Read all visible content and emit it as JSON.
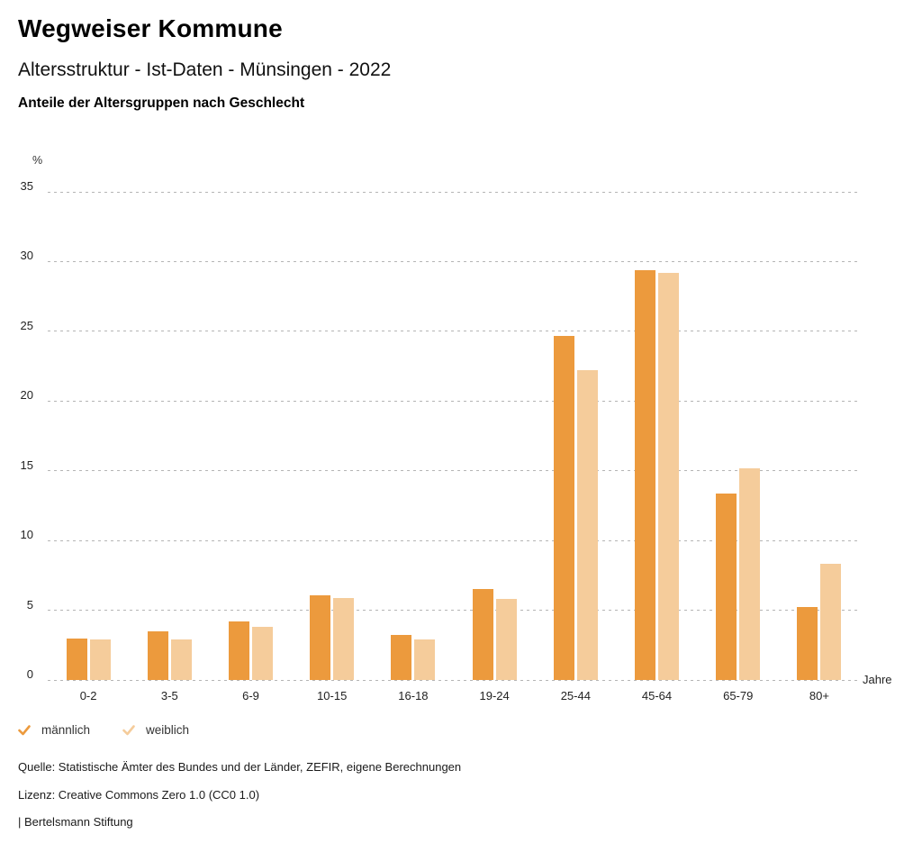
{
  "header": {
    "title": "Wegweiser Kommune",
    "subtitle": "Altersstruktur - Ist-Daten - Münsingen - 2022",
    "caption": "Anteile der Altersgruppen nach Geschlecht"
  },
  "chart_data": {
    "type": "bar",
    "title": "Anteile der Altersgruppen nach Geschlecht",
    "categories": [
      "0-2",
      "3-5",
      "6-9",
      "10-15",
      "16-18",
      "19-24",
      "25-44",
      "45-64",
      "65-79",
      "80+"
    ],
    "series": [
      {
        "name": "männlich",
        "color": "#EC9A3D",
        "values": [
          3.0,
          3.5,
          4.2,
          6.1,
          3.2,
          6.5,
          24.7,
          29.4,
          13.4,
          5.2
        ]
      },
      {
        "name": "weiblich",
        "color": "#F5CC9B",
        "values": [
          2.9,
          2.9,
          3.8,
          5.9,
          2.9,
          5.8,
          22.2,
          29.2,
          15.2,
          8.3
        ]
      }
    ],
    "xlabel": "Jahre",
    "ylabel": "%",
    "ylim": [
      0,
      35
    ],
    "ytick_step": 5,
    "y_ticks": [
      0,
      5,
      10,
      15,
      20,
      25,
      30,
      35
    ],
    "grid": "horizontal-dashed",
    "legend_position": "bottom-left"
  },
  "axes": {
    "y_unit": "%",
    "x_unit": "Jahre"
  },
  "legend": {
    "items": [
      {
        "label": "männlich",
        "icon": "check-icon",
        "color": "#EC9A3D"
      },
      {
        "label": "weiblich",
        "icon": "check-icon",
        "color": "#F5CC9B"
      }
    ]
  },
  "footer": {
    "source": "Quelle: Statistische Ämter des Bundes und der Länder, ZEFIR, eigene Berechnungen",
    "license": "Lizenz: Creative Commons Zero 1.0 (CC0 1.0)",
    "attribution": "| Bertelsmann Stiftung"
  },
  "colors": {
    "maennlich": "#EC9A3D",
    "weiblich": "#F5CC9B",
    "gridline": "#b5b5b5",
    "text": "#1a1a1a"
  }
}
